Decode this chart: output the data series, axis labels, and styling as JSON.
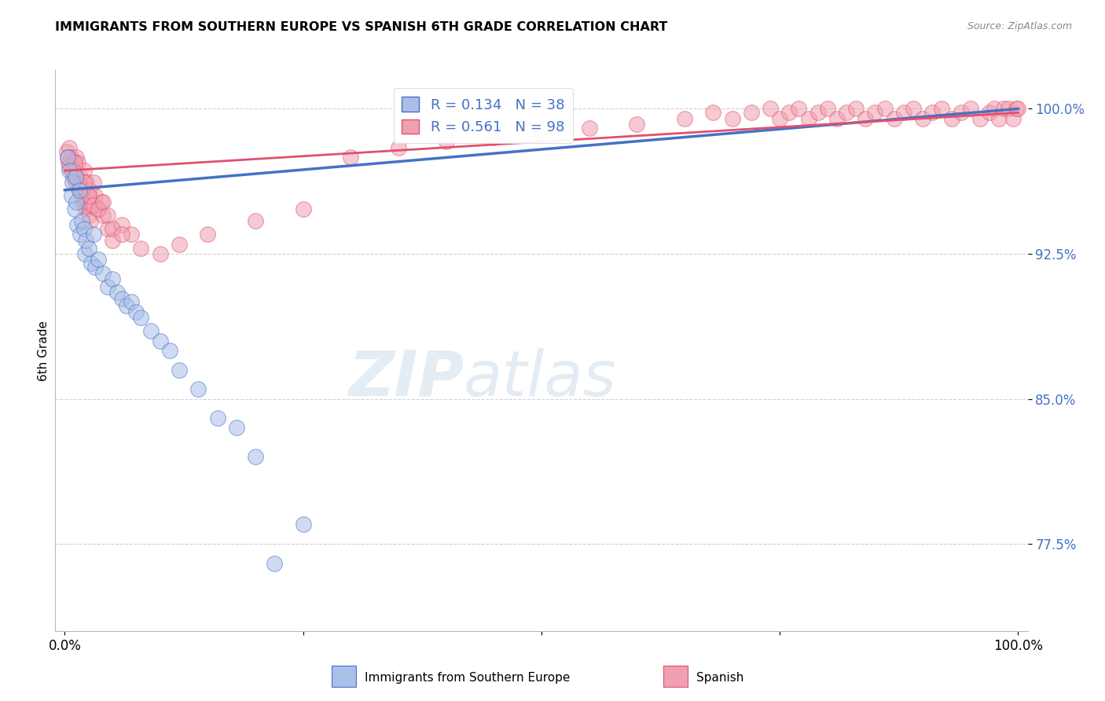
{
  "title": "IMMIGRANTS FROM SOUTHERN EUROPE VS SPANISH 6TH GRADE CORRELATION CHART",
  "source": "Source: ZipAtlas.com",
  "ylabel": "6th Grade",
  "ytick_labels": [
    "77.5%",
    "85.0%",
    "92.5%",
    "100.0%"
  ],
  "ytick_values": [
    77.5,
    85.0,
    92.5,
    100.0
  ],
  "legend_blue_r": "R = 0.134",
  "legend_blue_n": "N = 38",
  "legend_pink_r": "R = 0.561",
  "legend_pink_n": "N = 98",
  "legend_blue_label": "Immigrants from Southern Europe",
  "legend_pink_label": "Spanish",
  "blue_color": "#aabfe8",
  "pink_color": "#f0a0b0",
  "blue_line_color": "#4472c4",
  "pink_line_color": "#e05070",
  "blue_scatter_x": [
    0.3,
    0.5,
    0.7,
    0.8,
    1.0,
    1.1,
    1.2,
    1.3,
    1.5,
    1.6,
    1.8,
    2.0,
    2.1,
    2.2,
    2.5,
    2.8,
    3.0,
    3.2,
    3.5,
    4.0,
    4.5,
    5.0,
    5.5,
    6.0,
    6.5,
    7.0,
    7.5,
    8.0,
    9.0,
    10.0,
    11.0,
    12.0,
    14.0,
    16.0,
    18.0,
    20.0,
    22.0,
    25.0
  ],
  "blue_scatter_y": [
    97.5,
    96.8,
    95.5,
    96.2,
    94.8,
    96.5,
    95.2,
    94.0,
    95.8,
    93.5,
    94.2,
    93.8,
    92.5,
    93.2,
    92.8,
    92.0,
    93.5,
    91.8,
    92.2,
    91.5,
    90.8,
    91.2,
    90.5,
    90.2,
    89.8,
    90.0,
    89.5,
    89.2,
    88.5,
    88.0,
    87.5,
    86.5,
    85.5,
    84.0,
    83.5,
    82.0,
    76.5,
    78.5
  ],
  "pink_scatter_x": [
    0.2,
    0.4,
    0.5,
    0.6,
    0.7,
    0.8,
    0.9,
    1.0,
    1.1,
    1.2,
    1.3,
    1.4,
    1.5,
    1.6,
    1.7,
    1.8,
    1.9,
    2.0,
    2.1,
    2.2,
    2.3,
    2.4,
    2.5,
    2.6,
    2.7,
    2.8,
    3.0,
    3.2,
    3.5,
    3.8,
    4.0,
    4.5,
    5.0,
    6.0,
    7.0,
    8.0,
    10.0,
    12.0,
    15.0,
    20.0,
    25.0,
    30.0,
    35.0,
    40.0,
    45.0,
    50.0,
    55.0,
    60.0,
    65.0,
    68.0,
    70.0,
    72.0,
    74.0,
    75.0,
    76.0,
    77.0,
    78.0,
    79.0,
    80.0,
    81.0,
    82.0,
    83.0,
    84.0,
    85.0,
    86.0,
    87.0,
    88.0,
    89.0,
    90.0,
    91.0,
    92.0,
    93.0,
    94.0,
    95.0,
    96.0,
    97.0,
    97.5,
    98.0,
    98.5,
    99.0,
    99.5,
    99.8,
    100.0,
    0.3,
    0.5,
    0.8,
    1.0,
    1.2,
    1.5,
    1.8,
    2.0,
    2.5,
    3.0,
    3.5,
    4.0,
    4.5,
    5.0,
    6.0
  ],
  "pink_scatter_y": [
    97.8,
    97.2,
    98.0,
    97.5,
    96.8,
    97.3,
    96.5,
    97.0,
    96.2,
    97.5,
    96.0,
    97.2,
    95.8,
    96.5,
    95.5,
    96.0,
    95.2,
    96.8,
    95.0,
    94.8,
    96.2,
    95.5,
    94.5,
    95.8,
    94.2,
    95.0,
    96.2,
    95.5,
    94.8,
    95.2,
    94.5,
    93.8,
    93.2,
    94.0,
    93.5,
    92.8,
    92.5,
    93.0,
    93.5,
    94.2,
    94.8,
    97.5,
    98.0,
    98.3,
    98.5,
    98.8,
    99.0,
    99.2,
    99.5,
    99.8,
    99.5,
    99.8,
    100.0,
    99.5,
    99.8,
    100.0,
    99.5,
    99.8,
    100.0,
    99.5,
    99.8,
    100.0,
    99.5,
    99.8,
    100.0,
    99.5,
    99.8,
    100.0,
    99.5,
    99.8,
    100.0,
    99.5,
    99.8,
    100.0,
    99.5,
    99.8,
    100.0,
    99.5,
    100.0,
    100.0,
    99.5,
    100.0,
    100.0,
    97.5,
    97.0,
    96.8,
    97.2,
    96.5,
    96.0,
    95.8,
    96.2,
    95.5,
    95.0,
    94.8,
    95.2,
    94.5,
    93.8,
    93.5
  ],
  "blue_line_x0": 0.0,
  "blue_line_x1": 100.0,
  "blue_line_y0": 95.8,
  "blue_line_y1": 100.0,
  "pink_line_x0": 0.0,
  "pink_line_x1": 100.0,
  "pink_line_y0": 96.8,
  "pink_line_y1": 99.8,
  "watermark_zip": "ZIP",
  "watermark_atlas": "atlas",
  "bg_color": "#ffffff",
  "grid_color": "#d0d0d0",
  "xlim": [
    -1,
    101
  ],
  "ylim": [
    73.0,
    102.0
  ]
}
